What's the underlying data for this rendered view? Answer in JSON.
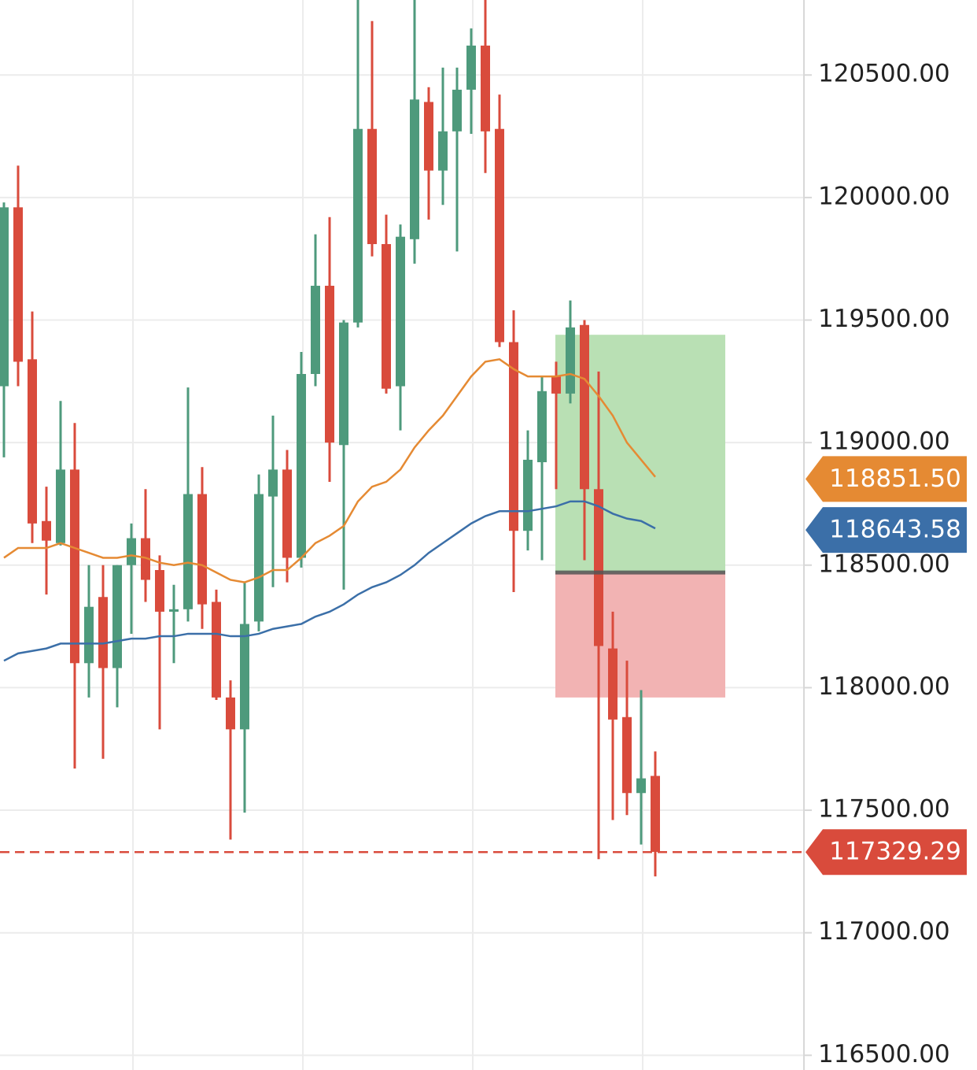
{
  "chart_data": {
    "type": "candlestick",
    "up_color": "#4e9a7c",
    "down_color": "#d94b3c",
    "ylim": [
      116440,
      120806
    ],
    "yticks": [
      {
        "value": 116500,
        "label": "116500.00"
      },
      {
        "value": 117000,
        "label": "117000.00"
      },
      {
        "value": 117500,
        "label": "117500.00"
      },
      {
        "value": 118000,
        "label": "118000.00"
      },
      {
        "value": 118500,
        "label": "118500.00"
      },
      {
        "value": 119000,
        "label": "119000.00"
      },
      {
        "value": 119500,
        "label": "119500.00"
      },
      {
        "value": 120000,
        "label": "120000.00"
      },
      {
        "value": 120500,
        "label": "120500.00"
      }
    ],
    "grid": true,
    "open": [
      119230,
      119960,
      119340,
      118680,
      118590,
      118890,
      118100,
      118370,
      118080,
      118500,
      118610,
      118480,
      118310,
      118320,
      118790,
      118350,
      117960,
      117830,
      118270,
      118780,
      118890,
      118530,
      119280,
      119640,
      118990,
      119490,
      120280,
      119810,
      119230,
      119830,
      120390,
      120110,
      120270,
      120440,
      120620,
      120280,
      119410,
      118640,
      118920,
      119270,
      119200,
      119480,
      118810,
      118160,
      117880,
      117570,
      117640
    ],
    "high": [
      119980,
      120130,
      119535,
      118820,
      119170,
      119080,
      118500,
      118500,
      118500,
      118670,
      118810,
      118540,
      118420,
      119225,
      118900,
      118400,
      118030,
      118430,
      118870,
      119110,
      118970,
      119370,
      119850,
      119920,
      119500,
      120850,
      120720,
      119930,
      119890,
      120850,
      120450,
      120530,
      120530,
      120690,
      120850,
      120420,
      119540,
      119050,
      119270,
      119330,
      119580,
      119500,
      119290,
      118310,
      118110,
      117990,
      117740
    ],
    "low": [
      118940,
      119230,
      118590,
      118380,
      118580,
      117670,
      117960,
      117710,
      117920,
      118220,
      118350,
      117830,
      118100,
      118270,
      118240,
      117950,
      117380,
      117490,
      118230,
      118410,
      118430,
      118490,
      119230,
      118840,
      118400,
      119470,
      119760,
      119200,
      119050,
      119730,
      119910,
      119970,
      119780,
      120260,
      120100,
      119390,
      118390,
      118560,
      118520,
      118810,
      119160,
      118520,
      117300,
      117460,
      117480,
      117360,
      117230
    ],
    "close": [
      119960,
      119330,
      118670,
      118600,
      118890,
      118100,
      118330,
      118080,
      118500,
      118610,
      118440,
      118310,
      118320,
      118790,
      118340,
      117960,
      117830,
      118260,
      118790,
      118890,
      118530,
      119280,
      119640,
      119000,
      119490,
      120280,
      119810,
      119220,
      119840,
      120400,
      120110,
      120270,
      120440,
      120620,
      120270,
      119410,
      118640,
      118930,
      119210,
      119200,
      119470,
      118810,
      118170,
      117870,
      117570,
      117630,
      117330
    ],
    "lines": [
      {
        "color": "#e58a33",
        "values": [
          118530,
          118570,
          118570,
          118570,
          118590,
          118570,
          118550,
          118530,
          118530,
          118540,
          118530,
          118510,
          118500,
          118510,
          118500,
          118470,
          118440,
          118430,
          118450,
          118480,
          118480,
          118530,
          118590,
          118620,
          118660,
          118760,
          118820,
          118840,
          118890,
          118980,
          119050,
          119110,
          119190,
          119270,
          119330,
          119340,
          119300,
          119270,
          119270,
          119270,
          119280,
          119260,
          119190,
          119110,
          119000,
          118930,
          118860
        ],
        "last": {
          "value": 118851.5,
          "label": "118851.50"
        }
      },
      {
        "color": "#3b6fa8",
        "values": [
          118110,
          118140,
          118150,
          118160,
          118180,
          118180,
          118180,
          118180,
          118190,
          118200,
          118200,
          118210,
          118210,
          118220,
          118220,
          118220,
          118210,
          118210,
          118220,
          118240,
          118250,
          118260,
          118290,
          118310,
          118340,
          118380,
          118410,
          118430,
          118460,
          118500,
          118550,
          118590,
          118630,
          118670,
          118700,
          118720,
          118720,
          118720,
          118730,
          118740,
          118760,
          118760,
          118740,
          118710,
          118690,
          118680,
          118650
        ],
        "last": {
          "value": 118643.58,
          "label": "118643.58"
        }
      }
    ],
    "position": {
      "target": 119440,
      "entry": 118470,
      "stop": 117960,
      "profit_color": "#b9e0b4",
      "loss_color": "#f2b3b3"
    },
    "last_price": {
      "value": 117329.29,
      "label": "117329.29",
      "color": "#d94b3c"
    }
  }
}
